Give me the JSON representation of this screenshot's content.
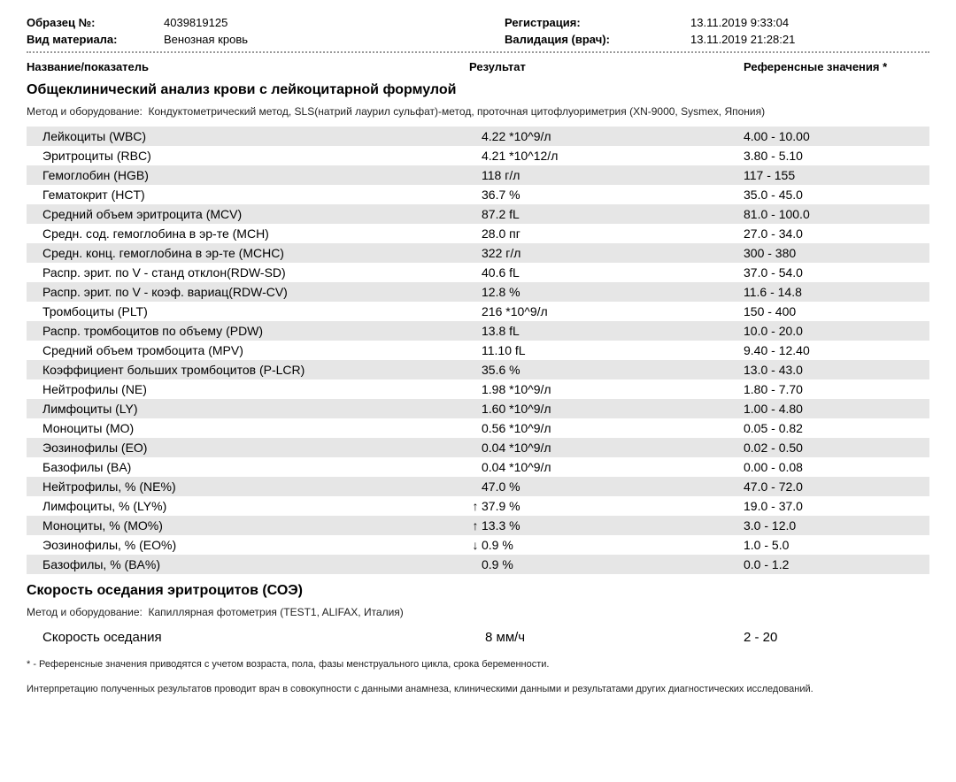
{
  "header": {
    "sample_label": "Образец №:",
    "sample_value": "4039819125",
    "material_label": "Вид материала:",
    "material_value": "Венозная кровь",
    "registration_label": "Регистрация:",
    "registration_value": "13.11.2019  9:33:04",
    "validation_label": "Валидация (врач):",
    "validation_value": "13.11.2019  21:28:21"
  },
  "columns": {
    "name": "Название/показатель",
    "result": "Результат",
    "reference": "Референсные значения *"
  },
  "section1": {
    "title": "Общеклинический анализ крови с лейкоцитарной формулой",
    "method_label": "Метод и оборудование:",
    "method_text": "Кондуктометрический метод, SLS(натрий лаурил сульфат)-метод, проточная цитофлуориметрия (XN-9000, Sysmex, Япония)",
    "rows": [
      {
        "name": "Лейкоциты (WBC)",
        "result": "4.22 *10^9/л",
        "ref": "4.00 - 10.00",
        "arrow": "",
        "alt": true
      },
      {
        "name": "Эритроциты (RBC)",
        "result": "4.21 *10^12/л",
        "ref": "3.80 - 5.10",
        "arrow": "",
        "alt": false
      },
      {
        "name": "Гемоглобин (HGB)",
        "result": "118 г/л",
        "ref": "117 - 155",
        "arrow": "",
        "alt": true
      },
      {
        "name": "Гематокрит (HCT)",
        "result": "36.7 %",
        "ref": "35.0 - 45.0",
        "arrow": "",
        "alt": false
      },
      {
        "name": "Средний объем эритроцита (MCV)",
        "result": "87.2 fL",
        "ref": "81.0 - 100.0",
        "arrow": "",
        "alt": true
      },
      {
        "name": "Средн. сод. гемоглобина в эр-те (MCH)",
        "result": "28.0 пг",
        "ref": "27.0 - 34.0",
        "arrow": "",
        "alt": false
      },
      {
        "name": "Средн. конц. гемоглобина в эр-те (MCHC)",
        "result": "322 г/л",
        "ref": "300 - 380",
        "arrow": "",
        "alt": true
      },
      {
        "name": "Распр. эрит. по V - станд отклон(RDW-SD)",
        "result": "40.6 fL",
        "ref": "37.0 - 54.0",
        "arrow": "",
        "alt": false
      },
      {
        "name": "Распр. эрит. по V - коэф. вариац(RDW-CV)",
        "result": "12.8 %",
        "ref": "11.6 - 14.8",
        "arrow": "",
        "alt": true
      },
      {
        "name": "Тромбоциты (PLT)",
        "result": "216 *10^9/л",
        "ref": "150 - 400",
        "arrow": "",
        "alt": false
      },
      {
        "name": "Распр. тромбоцитов по объему (PDW)",
        "result": "13.8 fL",
        "ref": "10.0 - 20.0",
        "arrow": "",
        "alt": true
      },
      {
        "name": "Средний объем тромбоцита (MPV)",
        "result": "11.10 fL",
        "ref": "9.40 - 12.40",
        "arrow": "",
        "alt": false
      },
      {
        "name": "Коэффициент больших тромбоцитов (P-LCR)",
        "result": "35.6 %",
        "ref": "13.0 - 43.0",
        "arrow": "",
        "alt": true
      },
      {
        "name": "Нейтрофилы (NE)",
        "result": "1.98 *10^9/л",
        "ref": "1.80 - 7.70",
        "arrow": "",
        "alt": false
      },
      {
        "name": "Лимфоциты (LY)",
        "result": "1.60 *10^9/л",
        "ref": "1.00 - 4.80",
        "arrow": "",
        "alt": true
      },
      {
        "name": "Моноциты (MO)",
        "result": "0.56 *10^9/л",
        "ref": "0.05 - 0.82",
        "arrow": "",
        "alt": false
      },
      {
        "name": "Эозинофилы (EO)",
        "result": "0.04 *10^9/л",
        "ref": "0.02 - 0.50",
        "arrow": "",
        "alt": true
      },
      {
        "name": "Базофилы (BA)",
        "result": "0.04 *10^9/л",
        "ref": "0.00 - 0.08",
        "arrow": "",
        "alt": false
      },
      {
        "name": "Нейтрофилы, % (NE%)",
        "result": "47.0 %",
        "ref": "47.0 - 72.0",
        "arrow": "",
        "alt": true
      },
      {
        "name": "Лимфоциты, % (LY%)",
        "result": "37.9 %",
        "ref": "19.0 - 37.0",
        "arrow": "↑",
        "alt": false
      },
      {
        "name": "Моноциты, % (MO%)",
        "result": "13.3 %",
        "ref": "3.0 - 12.0",
        "arrow": "↑",
        "alt": true
      },
      {
        "name": "Эозинофилы, % (EO%)",
        "result": "0.9 %",
        "ref": "1.0 - 5.0",
        "arrow": "↓",
        "alt": false
      },
      {
        "name": "Базофилы, % (BA%)",
        "result": "0.9 %",
        "ref": "0.0 - 1.2",
        "arrow": "",
        "alt": true
      }
    ]
  },
  "section2": {
    "title": "Скорость оседания эритроцитов (СОЭ)",
    "method_label": "Метод и оборудование:",
    "method_text": "Капиллярная фотометрия (TEST1, ALIFAX, Италия)",
    "row": {
      "name": "Скорость оседания",
      "result": "8 мм/ч",
      "ref": "2 - 20"
    }
  },
  "footnotes": {
    "star": "* - Референсные значения приводятся с учетом возраста, пола, фазы менструального цикла, срока беременности.",
    "interp": "Интерпретацию полученных результатов проводит врач в совокупности с данными анамнеза, клиническими данными и результатами других диагностических исследований."
  }
}
